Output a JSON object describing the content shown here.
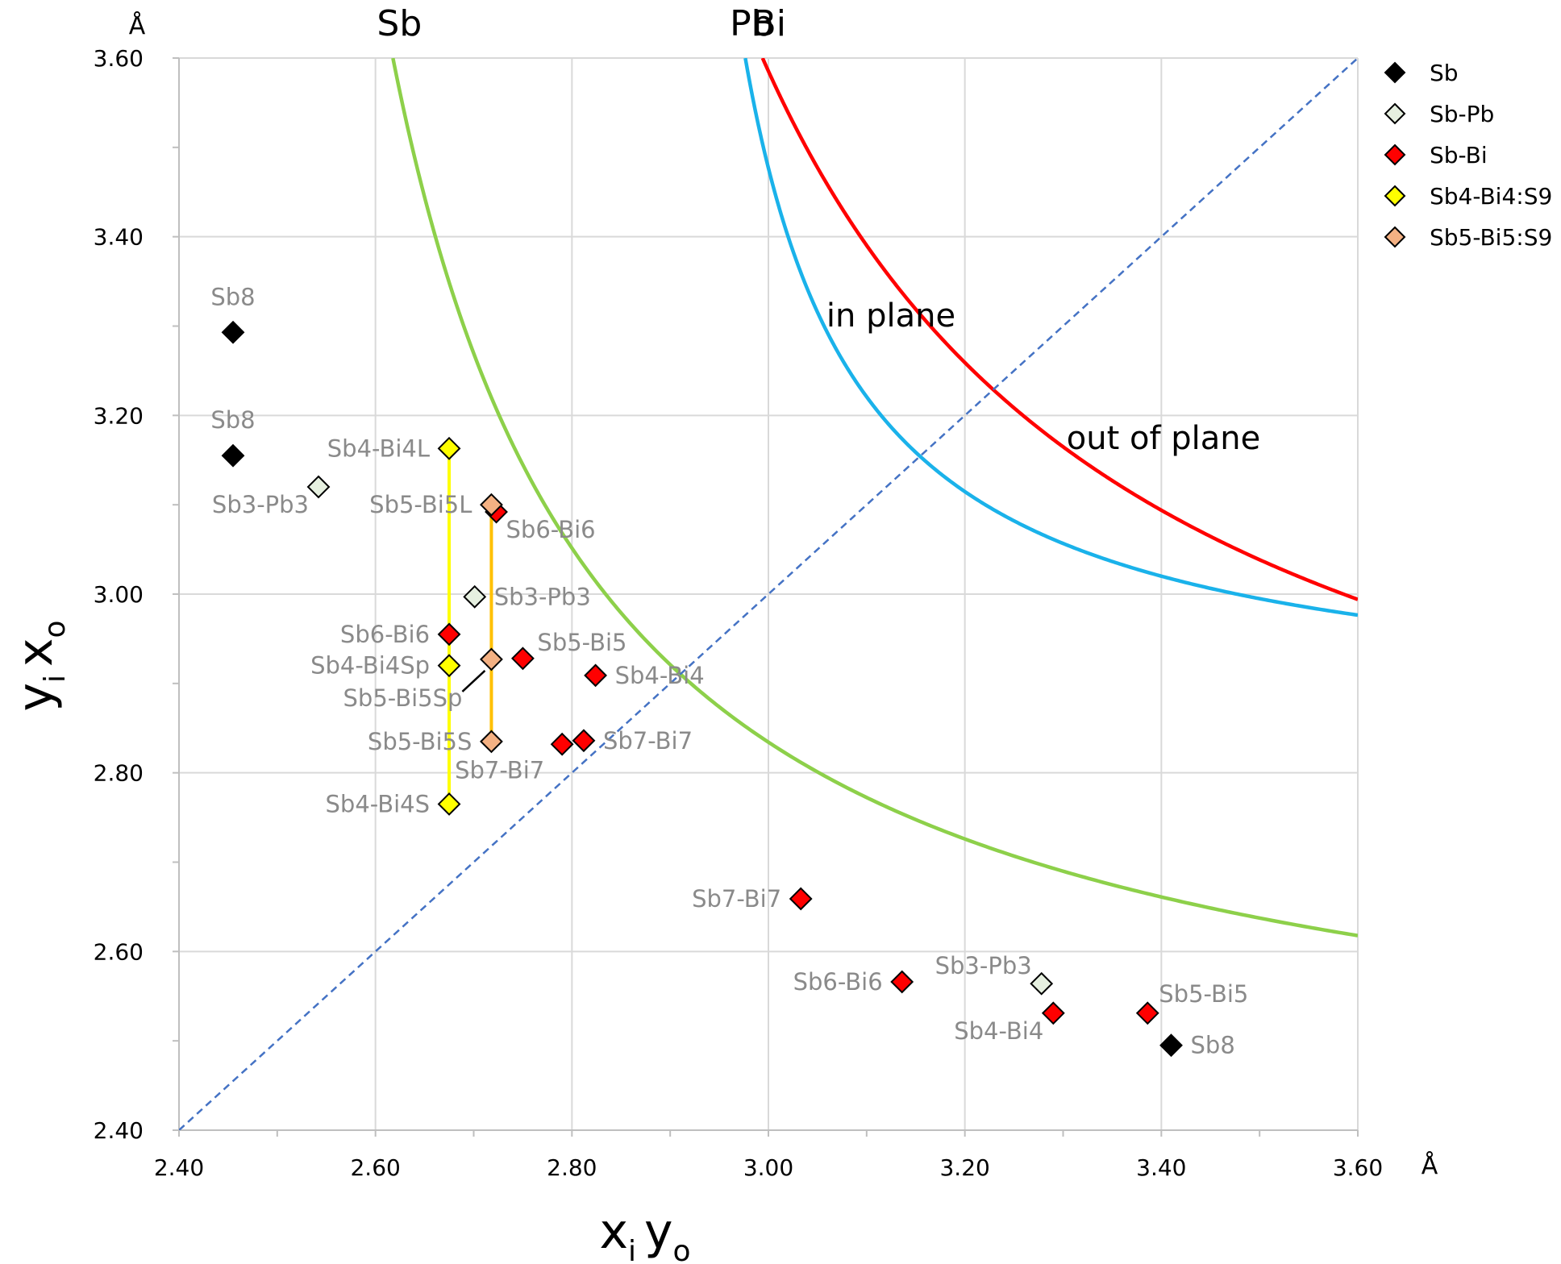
{
  "chart_data": {
    "type": "scatter",
    "xlabel": "x",
    "xlabel_sub1": "i",
    "xlabel_var2": "y",
    "xlabel_sub2": "o",
    "ylabel": "y",
    "ylabel_sub1": "i",
    "ylabel_var2": "x",
    "ylabel_sub2": "o",
    "x_unit": "Å",
    "y_unit": "Å",
    "xlim": [
      2.4,
      3.6
    ],
    "ylim": [
      2.4,
      3.6
    ],
    "x_ticks": [
      "2.40",
      "2.60",
      "2.80",
      "3.00",
      "3.20",
      "3.40",
      "3.60"
    ],
    "y_ticks": [
      "2.40",
      "2.60",
      "2.80",
      "3.00",
      "3.20",
      "3.40",
      "3.60"
    ],
    "grid": true,
    "legend_position": "top-right",
    "region_labels": {
      "in_plane": "in plane",
      "out_of_plane": "out of plane"
    },
    "curves": [
      {
        "name": "Sb",
        "color": "#8dd04a",
        "k": 0.2585,
        "a": 2.402
      },
      {
        "name": "Bi",
        "color": "#ff0000",
        "k": 0.4088,
        "a": 2.5895
      },
      {
        "name": "Pb",
        "color": "#1ab2ea",
        "k": 0.0875,
        "a": 2.8585
      }
    ],
    "diagonal_color": "#4472c4",
    "legend": [
      {
        "name": "Sb",
        "fill": "#000000"
      },
      {
        "name": "Sb-Pb",
        "fill": "#e6f0e0"
      },
      {
        "name": "Sb-Bi",
        "fill": "#ff0000"
      },
      {
        "name": "Sb4-Bi4:S9",
        "fill": "#ffff00"
      },
      {
        "name": "Sb5-Bi5:S9",
        "fill": "#f4b183"
      }
    ],
    "vertical_segments": [
      {
        "x": 2.675,
        "y1": 2.765,
        "y2": 3.163,
        "color": "#ffff00"
      },
      {
        "x": 2.718,
        "y1": 2.835,
        "y2": 3.1,
        "color": "#ffc000"
      }
    ],
    "points": [
      {
        "x": 2.455,
        "y": 3.293,
        "series": "Sb",
        "label": "Sb8",
        "pos": "above"
      },
      {
        "x": 2.455,
        "y": 3.155,
        "series": "Sb",
        "label": "Sb8",
        "pos": "above"
      },
      {
        "x": 3.41,
        "y": 2.495,
        "series": "Sb",
        "label": "Sb8",
        "pos": "right"
      },
      {
        "x": 2.542,
        "y": 3.12,
        "series": "Sb-Pb",
        "label": "Sb3-Pb3",
        "pos": "below-left"
      },
      {
        "x": 2.701,
        "y": 2.997,
        "series": "Sb-Pb",
        "label": "Sb3-Pb3",
        "pos": "right"
      },
      {
        "x": 3.278,
        "y": 2.564,
        "series": "Sb-Pb",
        "label": "Sb3-Pb3",
        "pos": "above-left"
      },
      {
        "x": 2.723,
        "y": 3.092,
        "series": "Sb-Bi",
        "label": "Sb6-Bi6",
        "pos": "below-right"
      },
      {
        "x": 2.675,
        "y": 2.955,
        "series": "Sb-Bi",
        "label": "Sb6-Bi6",
        "pos": "left"
      },
      {
        "x": 2.75,
        "y": 2.928,
        "series": "Sb-Bi",
        "label": "Sb5-Bi5",
        "pos": "right-up"
      },
      {
        "x": 2.824,
        "y": 2.909,
        "series": "Sb-Bi",
        "label": "Sb4-Bi4",
        "pos": "right"
      },
      {
        "x": 2.79,
        "y": 2.832,
        "series": "Sb-Bi",
        "label": "",
        "pos": "none"
      },
      {
        "x": 2.812,
        "y": 2.836,
        "series": "Sb-Bi",
        "label": "Sb7-Bi7",
        "pos": "right"
      },
      {
        "x": 3.033,
        "y": 2.659,
        "series": "Sb-Bi",
        "label": "Sb7-Bi7",
        "pos": "left"
      },
      {
        "x": 3.136,
        "y": 2.566,
        "series": "Sb-Bi",
        "label": "Sb6-Bi6",
        "pos": "left"
      },
      {
        "x": 3.29,
        "y": 2.531,
        "series": "Sb-Bi",
        "label": "Sb4-Bi4",
        "pos": "below-left"
      },
      {
        "x": 3.386,
        "y": 2.531,
        "series": "Sb-Bi",
        "label": "Sb5-Bi5",
        "pos": "above-right"
      },
      {
        "x": 2.675,
        "y": 3.163,
        "series": "Sb4-Bi4:S9",
        "label": "Sb4-Bi4L",
        "pos": "left"
      },
      {
        "x": 2.675,
        "y": 2.92,
        "series": "Sb4-Bi4:S9",
        "label": "Sb4-Bi4Sp",
        "pos": "left"
      },
      {
        "x": 2.675,
        "y": 2.765,
        "series": "Sb4-Bi4:S9",
        "label": "Sb4-Bi4S",
        "pos": "left"
      },
      {
        "x": 2.718,
        "y": 3.1,
        "series": "Sb5-Bi5:S9",
        "label": "Sb5-Bi5L",
        "pos": "left"
      },
      {
        "x": 2.718,
        "y": 2.927,
        "series": "Sb5-Bi5:S9",
        "label": "Sb5-Bi5Sp",
        "pos": "below-left-leader"
      },
      {
        "x": 2.718,
        "y": 2.835,
        "series": "Sb5-Bi5:S9",
        "label": "Sb5-Bi5S",
        "pos": "left"
      }
    ],
    "extra_labels": [
      {
        "x": 2.772,
        "y": 2.803,
        "text": "Sb7-Bi7"
      }
    ]
  }
}
